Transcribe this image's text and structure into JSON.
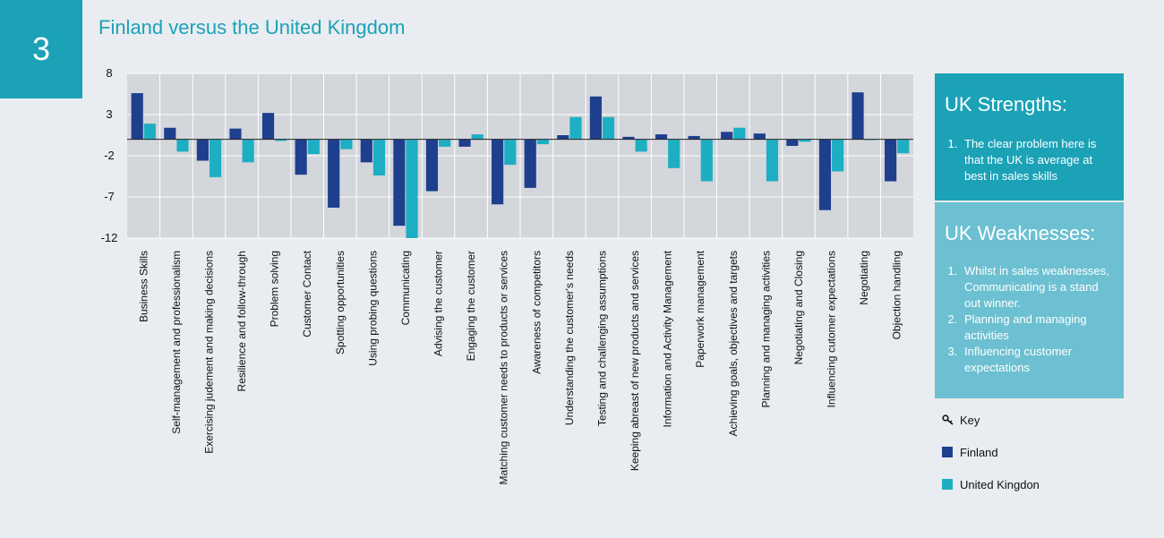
{
  "badge": "3",
  "title": "Finland versus the United Kingdom",
  "strengths": {
    "heading": "UK Strengths:",
    "items": [
      "The clear problem here is that the UK is average at best in sales skills"
    ]
  },
  "weaknesses": {
    "heading": "UK Weaknesses:",
    "items": [
      "Whilst in sales weaknesses, Communicating is a stand out winner.",
      "Planning and managing activities",
      "Influencing customer expectations"
    ]
  },
  "legend": {
    "title": "Key",
    "icon": "key-icon",
    "entries": [
      {
        "label": "Finland",
        "color": "#1e3f8e"
      },
      {
        "label": "United Kingdon",
        "color": "#1eaec3"
      }
    ]
  },
  "chart_data": {
    "type": "bar",
    "categories": [
      "Business Skills",
      "Self-management and professionalism",
      "Exercising judement and making decisions",
      "Resilience and follow-through",
      "Problem solving",
      "Customer Contact",
      "Spotting opportunities",
      "Using probing questions",
      "Communicating",
      "Advising the customer",
      "Engaging the customer",
      "Matching customer needs to products or services",
      "Awareness of competitors",
      "Understanding the customer's needs",
      "Testing and challenging assumptions",
      "Keeping abreast of new products and services",
      "Information and Activity Management",
      "Paperwork management",
      "Achieving goals, objectives and targets",
      "Planning and managing activities",
      "Negotiating and Closing",
      "Influencing cutomer expectations",
      "Negotiating",
      "Objection handling"
    ],
    "series": [
      {
        "name": "Finland",
        "color": "#1e3f8e",
        "values": [
          5.6,
          1.4,
          -2.6,
          1.3,
          3.2,
          -4.3,
          -8.3,
          -2.8,
          -10.5,
          -6.3,
          -0.9,
          -7.9,
          -5.9,
          0.5,
          5.2,
          0.3,
          0.6,
          0.4,
          0.9,
          0.7,
          -0.8,
          -8.6,
          5.7,
          -5.1
        ]
      },
      {
        "name": "United Kingdon",
        "color": "#1eaec3",
        "values": [
          1.9,
          -1.5,
          -4.6,
          -2.8,
          -0.2,
          -1.8,
          -1.2,
          -4.4,
          -12.0,
          -0.9,
          0.6,
          -3.1,
          -0.6,
          2.7,
          2.7,
          -1.5,
          -3.5,
          -5.1,
          1.4,
          -5.1,
          -0.3,
          -3.9,
          -0.1,
          -1.7
        ]
      }
    ],
    "yticks": [
      8,
      3,
      -2,
      -7,
      -12
    ],
    "ylim": [
      -12,
      8
    ],
    "grid": true,
    "legend_position": "right"
  }
}
